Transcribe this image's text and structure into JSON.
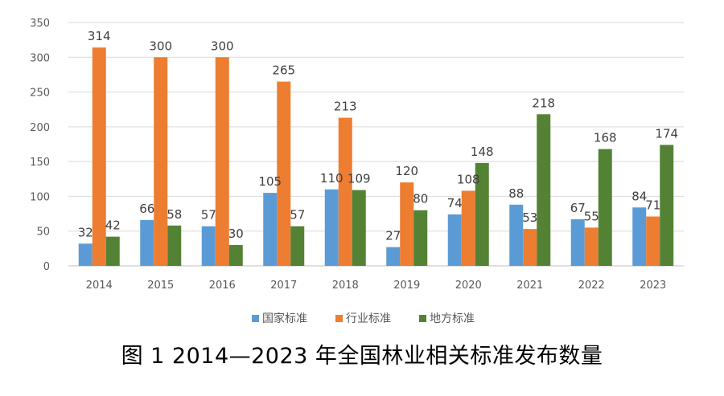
{
  "caption": "图 1   2014—2023 年全国林业相关标准发布数量",
  "chart_data": {
    "type": "bar",
    "categories": [
      "2014",
      "2015",
      "2016",
      "2017",
      "2018",
      "2019",
      "2020",
      "2021",
      "2022",
      "2023"
    ],
    "series": [
      {
        "name": "国家标准",
        "color": "#5B9BD5",
        "values": [
          32,
          66,
          57,
          105,
          110,
          27,
          74,
          88,
          67,
          84
        ]
      },
      {
        "name": "行业标准",
        "color": "#ED7D31",
        "values": [
          314,
          300,
          300,
          265,
          213,
          120,
          108,
          53,
          55,
          71
        ]
      },
      {
        "name": "地方标准",
        "color": "#548235",
        "values": [
          42,
          58,
          30,
          57,
          109,
          80,
          148,
          218,
          168,
          174
        ]
      }
    ],
    "ylim": [
      0,
      350
    ],
    "yticks": [
      0,
      50,
      100,
      150,
      200,
      250,
      300,
      350
    ],
    "grid": true,
    "legend": "bottom",
    "title": "",
    "xlabel": "",
    "ylabel": ""
  }
}
